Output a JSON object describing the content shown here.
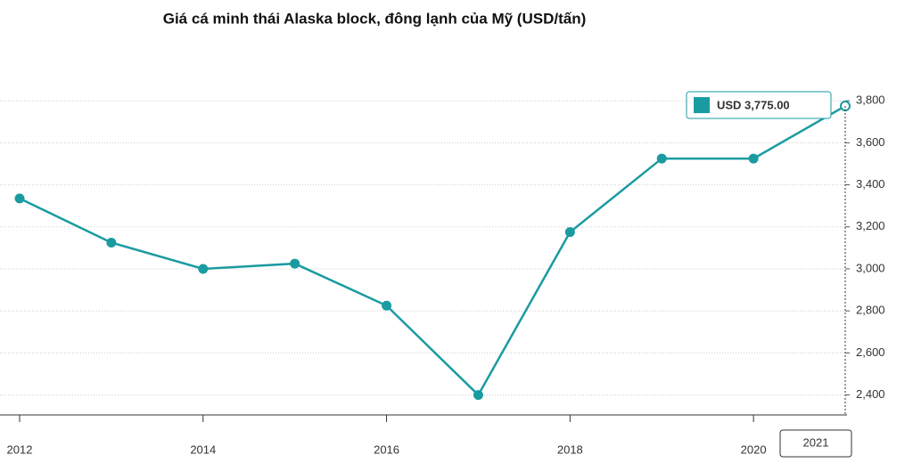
{
  "chart_data": {
    "type": "line",
    "title": "Giá cá minh thái Alaska block, đông lạnh của Mỹ (USD/tấn)",
    "x": [
      2012,
      2013,
      2014,
      2015,
      2016,
      2017,
      2018,
      2019,
      2020,
      2021
    ],
    "series": [
      {
        "name": "USD",
        "color": "#1a9ba1",
        "values": [
          3335,
          3125,
          3000,
          3025,
          2825,
          2400,
          3175,
          3525,
          3525,
          3775
        ],
        "value_labels": [
          null,
          null,
          null,
          null,
          null,
          null,
          null,
          null,
          null,
          "USD 3,775.00"
        ]
      }
    ],
    "xlim": [
      2012,
      2021
    ],
    "xticks": [
      2012,
      2014,
      2016,
      2018,
      2020
    ],
    "ylim": [
      2305,
      3860
    ],
    "yticks": [
      {
        "value": 2400,
        "label": "2,400"
      },
      {
        "value": 2600,
        "label": "2,600"
      },
      {
        "value": 2800,
        "label": "2,800"
      },
      {
        "value": 3000,
        "label": "3,000"
      },
      {
        "value": 3200,
        "label": "3,200"
      },
      {
        "value": 3400,
        "label": "3,400"
      },
      {
        "value": 3600,
        "label": "3,600"
      },
      {
        "value": 3800,
        "label": "3,800"
      }
    ],
    "grid": true
  }
}
